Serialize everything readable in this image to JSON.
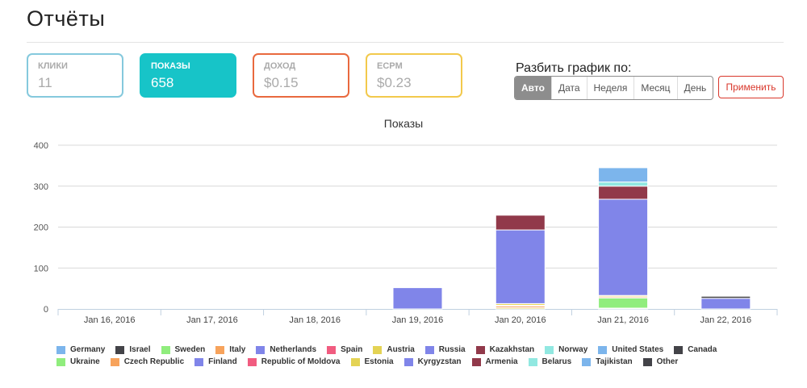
{
  "page": {
    "title": "Отчёты"
  },
  "cards": {
    "clicks": {
      "label": "КЛИКИ",
      "value": "11"
    },
    "impressions": {
      "label": "ПОКАЗЫ",
      "value": "658"
    },
    "income": {
      "label": "ДОХОД",
      "value": "$0.15"
    },
    "ecpm": {
      "label": "ECPM",
      "value": "$0.23"
    }
  },
  "split": {
    "label": "Разбить график по:",
    "options": [
      "Авто",
      "Дата",
      "Неделя",
      "Месяц",
      "День"
    ],
    "selected": "Авто",
    "apply_label": "Применить"
  },
  "colors": {
    "clicks_border": "#85c9dd",
    "impressions_fill": "#17c4c8",
    "income_border": "#e9693e",
    "ecpm_border": "#f2c94c",
    "apply": "#d9372b"
  },
  "chart_data": {
    "type": "bar",
    "stacked": true,
    "title": "Показы",
    "categories": [
      "Jan 16, 2016",
      "Jan 17, 2016",
      "Jan 18, 2016",
      "Jan 19, 2016",
      "Jan 20, 2016",
      "Jan 21, 2016",
      "Jan 22, 2016"
    ],
    "ylim": [
      0,
      400
    ],
    "yticks": [
      0,
      100,
      200,
      300,
      400
    ],
    "grid": true,
    "legend_position": "bottom",
    "series": [
      {
        "name": "Germany",
        "color": "#7cb5ec",
        "values": [
          0,
          0,
          0,
          0,
          0,
          0,
          0
        ]
      },
      {
        "name": "Israel",
        "color": "#434348",
        "values": [
          0,
          0,
          0,
          0,
          0,
          0,
          0
        ]
      },
      {
        "name": "Sweden",
        "color": "#90ed7d",
        "values": [
          0,
          0,
          0,
          0,
          0,
          0,
          0
        ]
      },
      {
        "name": "Italy",
        "color": "#f7a35c",
        "values": [
          0,
          0,
          0,
          0,
          0,
          0,
          0
        ]
      },
      {
        "name": "Netherlands",
        "color": "#8085e9",
        "values": [
          0,
          0,
          0,
          0,
          0,
          0,
          0
        ]
      },
      {
        "name": "Spain",
        "color": "#f15c80",
        "values": [
          0,
          0,
          0,
          0,
          0,
          0,
          0
        ]
      },
      {
        "name": "Austria",
        "color": "#e4d354",
        "values": [
          0,
          0,
          0,
          0,
          3,
          2,
          0
        ]
      },
      {
        "name": "Russia",
        "color": "#8085e9",
        "values": [
          0,
          0,
          0,
          0,
          0,
          0,
          0
        ]
      },
      {
        "name": "Kazakhstan",
        "color": "#91394a",
        "values": [
          0,
          0,
          0,
          0,
          0,
          0,
          0
        ]
      },
      {
        "name": "Norway",
        "color": "#91e8e1",
        "values": [
          0,
          0,
          0,
          0,
          0,
          0,
          0
        ]
      },
      {
        "name": "United States",
        "color": "#7cb5ec",
        "values": [
          0,
          0,
          0,
          0,
          0,
          0,
          0
        ]
      },
      {
        "name": "Canada",
        "color": "#434348",
        "values": [
          0,
          0,
          0,
          0,
          0,
          0,
          0
        ]
      },
      {
        "name": "Ukraine",
        "color": "#90ed7d",
        "values": [
          0,
          0,
          0,
          0,
          0,
          25,
          0
        ]
      },
      {
        "name": "Czech Republic",
        "color": "#f7a35c",
        "values": [
          0,
          0,
          0,
          0,
          4,
          3,
          0
        ]
      },
      {
        "name": "Finland",
        "color": "#8085e9",
        "values": [
          0,
          0,
          0,
          0,
          2,
          0,
          0
        ]
      },
      {
        "name": "Republic of Moldova",
        "color": "#f15c80",
        "values": [
          0,
          0,
          0,
          0,
          0,
          0,
          0
        ]
      },
      {
        "name": "Estonia",
        "color": "#e4d354",
        "values": [
          0,
          0,
          0,
          0,
          4,
          3,
          0
        ]
      },
      {
        "name": "Kyrgyzstan",
        "color": "#8085e9",
        "values": [
          0,
          0,
          0,
          52,
          180,
          235,
          26
        ]
      },
      {
        "name": "Armenia",
        "color": "#91394a",
        "values": [
          0,
          0,
          0,
          0,
          36,
          32,
          0
        ]
      },
      {
        "name": "Belarus",
        "color": "#91e8e1",
        "values": [
          0,
          0,
          0,
          0,
          0,
          10,
          0
        ]
      },
      {
        "name": "Tajikistan",
        "color": "#7cb5ec",
        "values": [
          0,
          0,
          0,
          0,
          0,
          35,
          0
        ]
      },
      {
        "name": "Other",
        "color": "#434348",
        "values": [
          0,
          0,
          0,
          0,
          0,
          0,
          5
        ]
      }
    ]
  }
}
